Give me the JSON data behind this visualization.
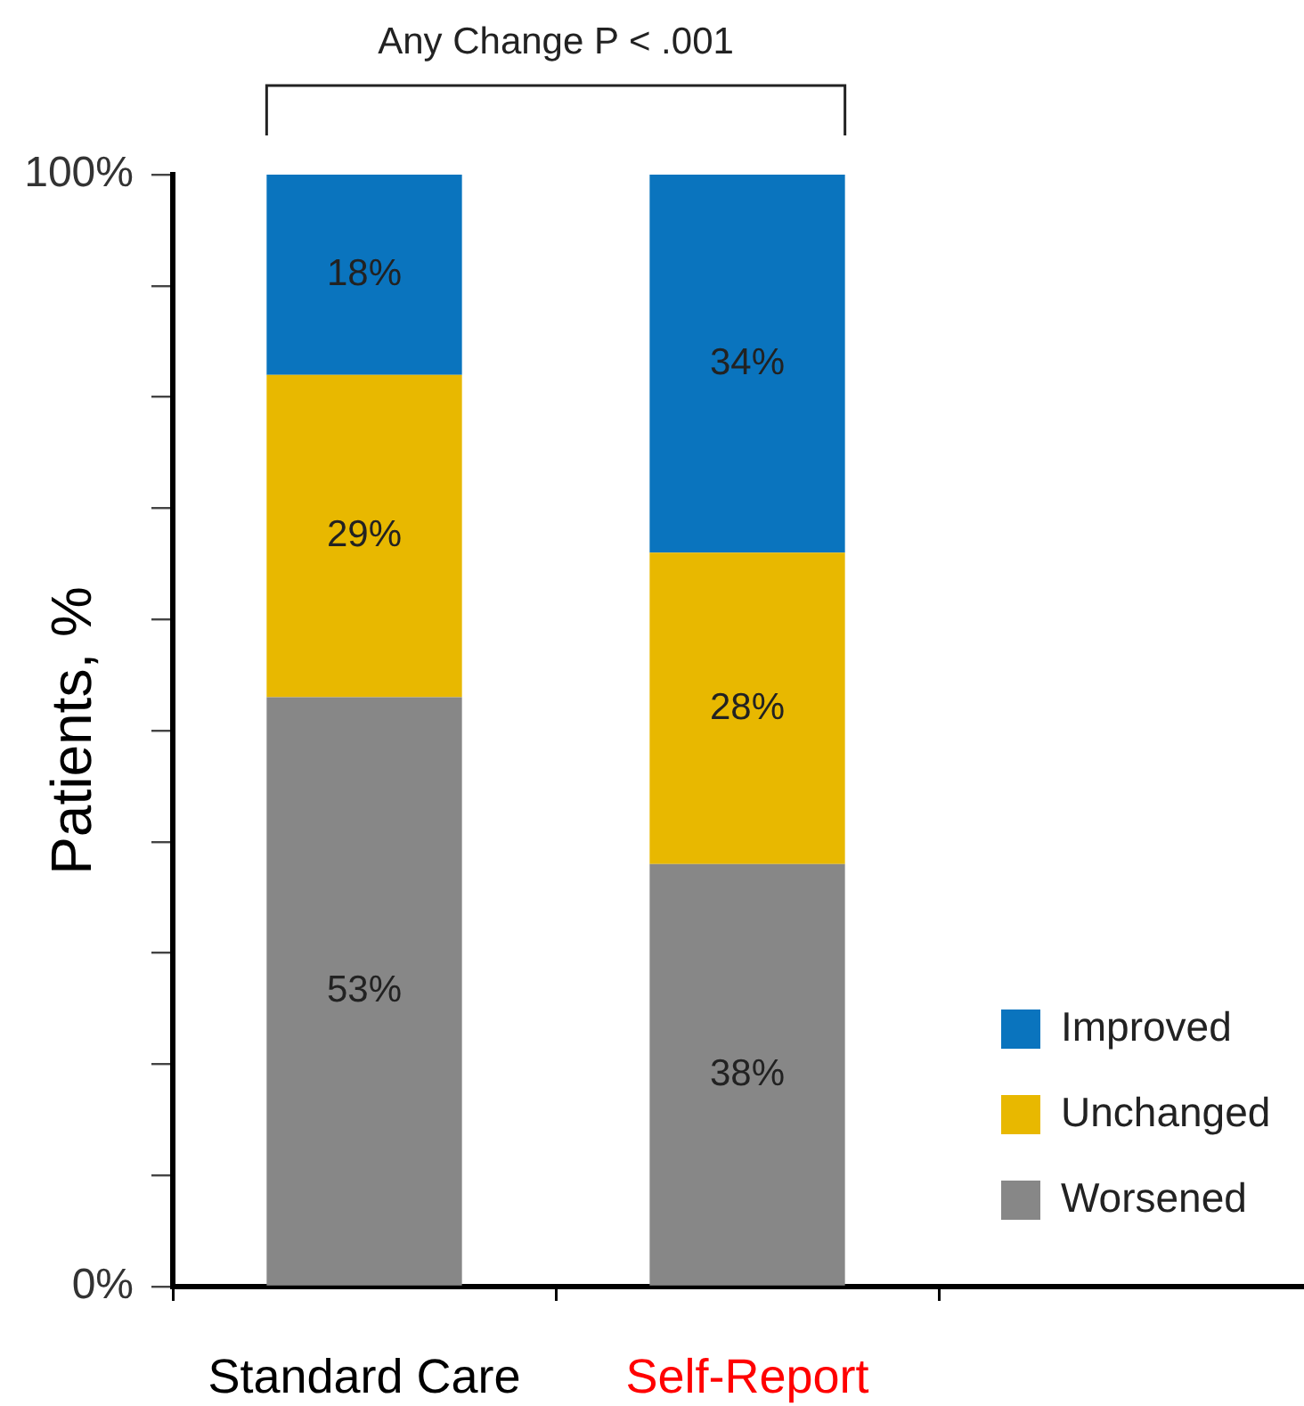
{
  "chart_data": {
    "type": "bar",
    "stacked": true,
    "categories": [
      "Standard Care",
      "Self-Report"
    ],
    "series": [
      {
        "name": "Worsened",
        "color": "#878787",
        "values": [
          53,
          38
        ],
        "value_labels": [
          "53%",
          "38%"
        ]
      },
      {
        "name": "Unchanged",
        "color": "#e8b800",
        "values": [
          29,
          28
        ],
        "value_labels": [
          "29%",
          "28%"
        ]
      },
      {
        "name": "Improved",
        "color": "#0a74be",
        "values": [
          18,
          34
        ],
        "value_labels": [
          "18%",
          "34%"
        ]
      }
    ],
    "ylabel": "Patients, %",
    "ylim": [
      0,
      100
    ],
    "yticks": [
      {
        "value": 0,
        "label": "0%"
      },
      {
        "value": 10,
        "label": null
      },
      {
        "value": 20,
        "label": null
      },
      {
        "value": 30,
        "label": null
      },
      {
        "value": 40,
        "label": null
      },
      {
        "value": 50,
        "label": null
      },
      {
        "value": 60,
        "label": null
      },
      {
        "value": 70,
        "label": null
      },
      {
        "value": 80,
        "label": null
      },
      {
        "value": 90,
        "label": null
      },
      {
        "value": 100,
        "label": "100%"
      }
    ],
    "annotations": [
      "Any Change P < .001"
    ],
    "legend": "bottom right"
  }
}
